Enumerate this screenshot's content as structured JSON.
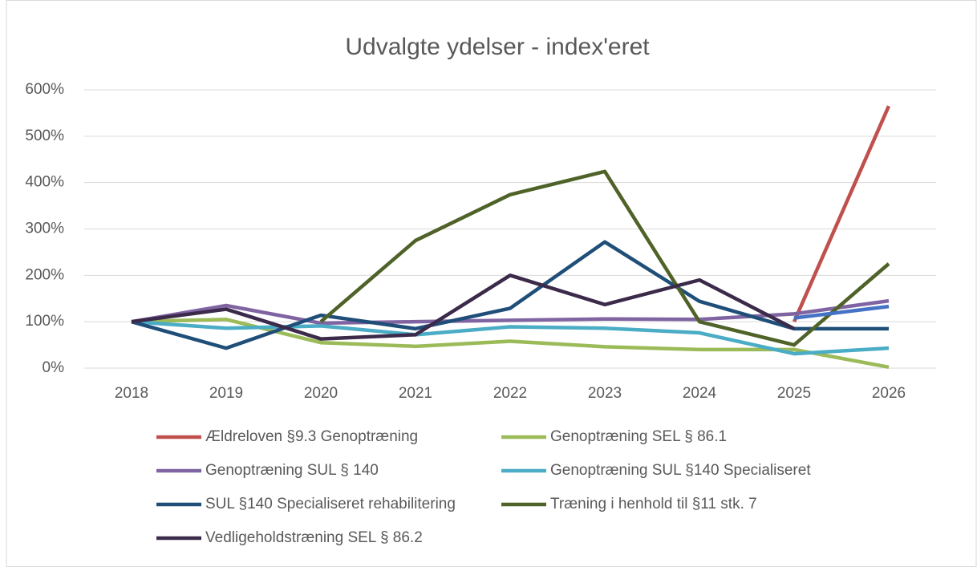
{
  "chart_data": {
    "type": "line",
    "title": "Udvalgte ydelser - index'eret",
    "categories": [
      "2018",
      "2019",
      "2020",
      "2021",
      "2022",
      "2023",
      "2024",
      "2025",
      "2026"
    ],
    "series": [
      {
        "name": "Ældreloven §9.3 Genoptræning",
        "color": "#c0504d",
        "values": [
          null,
          null,
          null,
          null,
          null,
          null,
          null,
          100,
          565
        ]
      },
      {
        "name": "Genoptræning SEL § 86.1",
        "color": "#9bbb59",
        "values": [
          100,
          105,
          55,
          47,
          58,
          46,
          40,
          40,
          2
        ]
      },
      {
        "name": "Genoptræning SUL § 140",
        "color": "#8064a2",
        "values": [
          100,
          135,
          97,
          100,
          103,
          106,
          105,
          117,
          145
        ]
      },
      {
        "name": "Genoptræning SUL §140 Specialiseret",
        "color": "#4bacc6",
        "values": [
          100,
          86,
          91,
          72,
          89,
          86,
          76,
          31,
          43
        ]
      },
      {
        "name": "SUL §140 Specialiseret rehabilitering",
        "color": "#1f4e79",
        "values": [
          100,
          43,
          114,
          85,
          129,
          272,
          144,
          85,
          85
        ]
      },
      {
        "name": "Træning i henhold til §11 stk. 7",
        "color": "#4f6228",
        "values": [
          null,
          null,
          100,
          275,
          374,
          424,
          100,
          50,
          225
        ]
      },
      {
        "name": "Vedligeholdstræning SEL § 86.2",
        "color": "#3b2a4a",
        "values": [
          100,
          127,
          63,
          72,
          200,
          137,
          190,
          85,
          null
        ]
      },
      {
        "color": "#4472c4",
        "values": [
          null,
          null,
          null,
          null,
          null,
          null,
          null,
          108,
          133
        ]
      }
    ],
    "ylim": [
      0,
      600
    ],
    "yticks": [
      {
        "value": 0,
        "label": "0%"
      },
      {
        "value": 100,
        "label": "100%"
      },
      {
        "value": 200,
        "label": "200%"
      },
      {
        "value": 300,
        "label": "300%"
      },
      {
        "value": 400,
        "label": "400%"
      },
      {
        "value": 500,
        "label": "500%"
      },
      {
        "value": 600,
        "label": "600%"
      }
    ],
    "grid": true
  }
}
